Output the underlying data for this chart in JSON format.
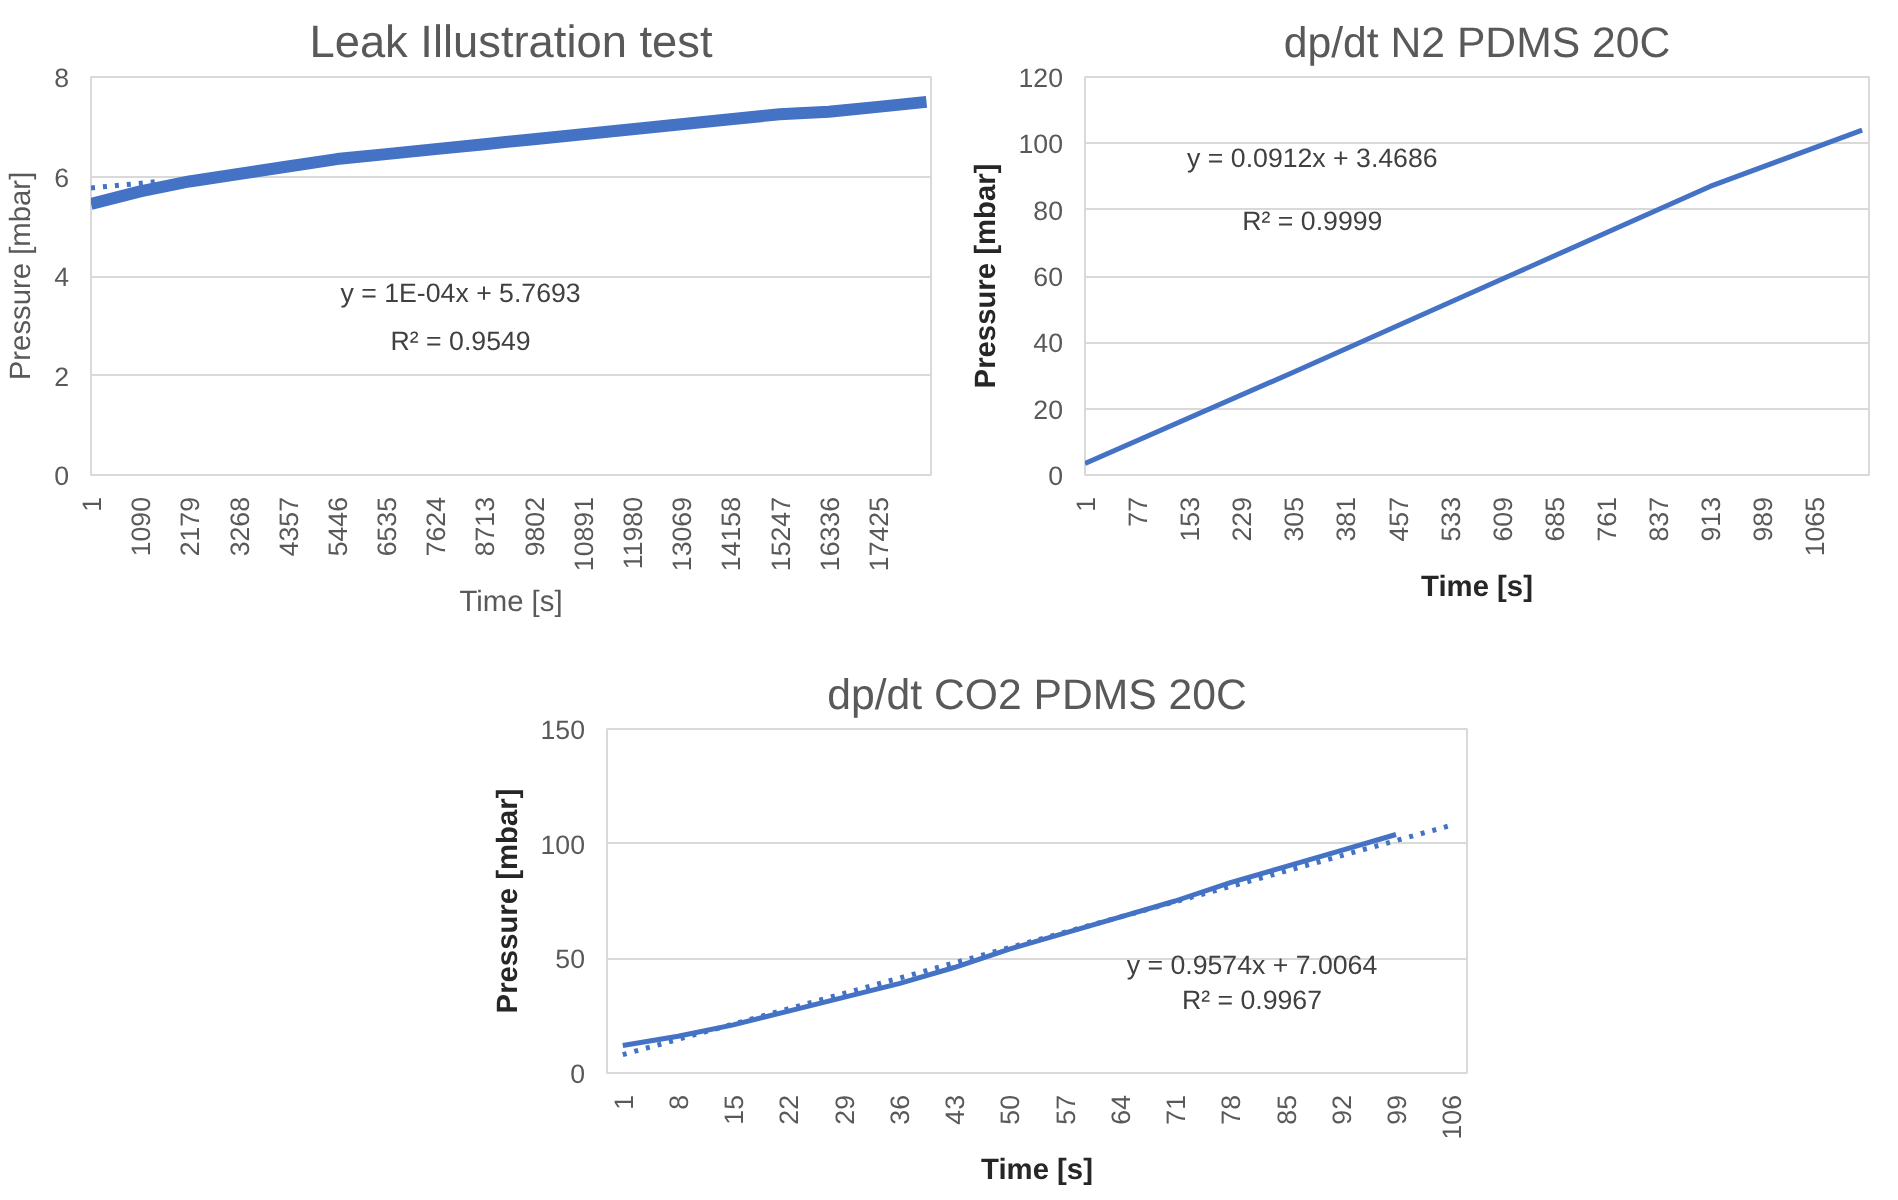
{
  "chart_data": [
    {
      "type": "line",
      "title": "Leak Illustration test",
      "xlabel": "Time [s]",
      "ylabel": "Pressure [mbar]",
      "grid": "y",
      "marker": "none",
      "xlim": [
        1,
        18600
      ],
      "xticks": [
        1,
        1090,
        2179,
        3268,
        4357,
        5446,
        6535,
        7624,
        8713,
        9802,
        10891,
        11980,
        13069,
        14158,
        15247,
        16336,
        17425
      ],
      "ylim": [
        0,
        8
      ],
      "yticks": [
        0,
        2,
        4,
        6,
        8
      ],
      "series": [
        {
          "color": "#4472c4",
          "line_style": "solid",
          "x": [
            1,
            1090,
            2179,
            3268,
            4357,
            5446,
            6535,
            7624,
            8713,
            9802,
            10891,
            11980,
            13069,
            14158,
            15247,
            16336,
            17425,
            18500
          ],
          "values": [
            5.45,
            5.7,
            5.9,
            6.05,
            6.2,
            6.35,
            6.45,
            6.55,
            6.65,
            6.75,
            6.85,
            6.95,
            7.05,
            7.15,
            7.25,
            7.3,
            7.4,
            7.5
          ]
        },
        {
          "color": "#4472c4",
          "line_style": "dotted",
          "x": [
            1,
            1500
          ],
          "values": [
            5.77,
            5.9
          ]
        }
      ],
      "annotations": [
        "y = 1E-04x + 5.7693",
        "R² = 0.9549"
      ]
    },
    {
      "type": "line",
      "title": "dp/dt N2 PDMS 20C",
      "xlabel": "Time [s]",
      "ylabel": "Pressure [mbar]",
      "grid": "y",
      "marker": "none",
      "xlim": [
        1,
        1145
      ],
      "xticks": [
        1,
        77,
        153,
        229,
        305,
        381,
        457,
        533,
        609,
        685,
        761,
        837,
        913,
        989,
        1065
      ],
      "ylim": [
        0,
        120
      ],
      "yticks": [
        0,
        20,
        40,
        60,
        80,
        100,
        120
      ],
      "series": [
        {
          "color": "#4472c4",
          "line_style": "solid",
          "x": [
            1,
            305,
            609,
            913,
            1135
          ],
          "values": [
            3.5,
            31,
            59,
            87,
            104
          ]
        }
      ],
      "annotations": [
        "y = 0.0912x + 3.4686",
        "R² = 0.9999"
      ]
    },
    {
      "type": "line",
      "title": "dp/dt CO2 PDMS 20C",
      "xlabel": "Time [s]",
      "ylabel": "Pressure [mbar]",
      "grid": "y",
      "marker": "none",
      "xlim": [
        -1,
        108
      ],
      "xticks": [
        1,
        8,
        15,
        22,
        29,
        36,
        43,
        50,
        57,
        64,
        71,
        78,
        85,
        92,
        99,
        106
      ],
      "ylim": [
        0,
        150
      ],
      "yticks": [
        0,
        50,
        100,
        150
      ],
      "series": [
        {
          "color": "#4472c4",
          "line_style": "solid",
          "x": [
            1,
            8,
            15,
            22,
            29,
            36,
            43,
            50,
            57,
            64,
            71,
            78,
            85,
            92,
            99
          ],
          "values": [
            12,
            16,
            21,
            27,
            33,
            39,
            46,
            54,
            61,
            68,
            75,
            83,
            90,
            97,
            104
          ]
        },
        {
          "color": "#4472c4",
          "line_style": "dotted",
          "x": [
            1,
            106
          ],
          "values": [
            8,
            108
          ]
        }
      ],
      "annotations": [
        "y = 0.9574x + 7.0064",
        "R² = 0.9967"
      ]
    }
  ]
}
